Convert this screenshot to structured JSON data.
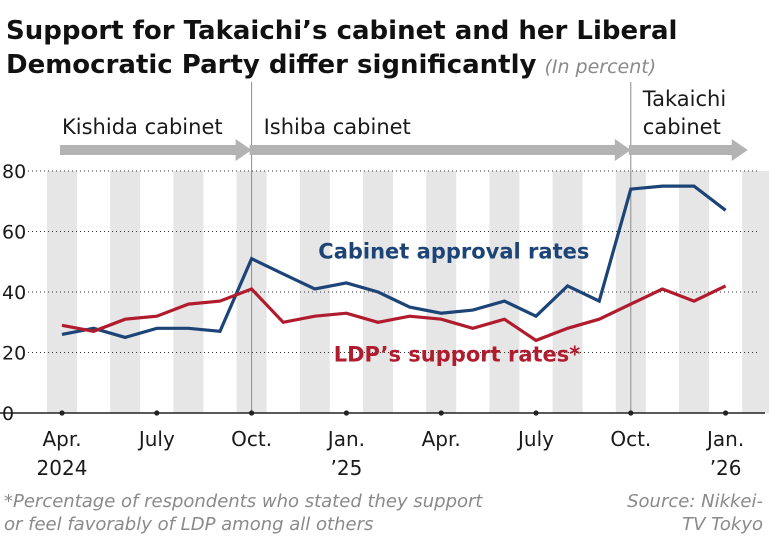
{
  "title_line1": "Support for Takaichi’s cabinet and her Liberal",
  "title_line2": "Democratic Party differ significantly",
  "title_unit": "(In percent)",
  "footnote_line1": "*Percentage of respondents who stated they support",
  "footnote_line2": "or feel favorably of LDP among all others",
  "source_line1": "Source: Nikkei-",
  "source_line2": "TV Tokyo",
  "colors": {
    "cabinet": "#1d4477",
    "ldp": "#b01c2e",
    "band": "#e6e6e6",
    "arrow": "#b3b3b3"
  },
  "chart_data": {
    "type": "line",
    "x_range": [
      0,
      22
    ],
    "ylim": [
      0,
      80
    ],
    "yticks": [
      0,
      20,
      40,
      60,
      80
    ],
    "x_ticks": [
      {
        "pos": 0,
        "line1": "Apr.",
        "line2": "2024"
      },
      {
        "pos": 3,
        "line1": "July",
        "line2": ""
      },
      {
        "pos": 6,
        "line1": "Oct.",
        "line2": ""
      },
      {
        "pos": 9,
        "line1": "Jan.",
        "line2": "’25"
      },
      {
        "pos": 12,
        "line1": "Apr.",
        "line2": ""
      },
      {
        "pos": 15,
        "line1": "July",
        "line2": ""
      },
      {
        "pos": 18,
        "line1": "Oct.",
        "line2": ""
      },
      {
        "pos": 21,
        "line1": "Jan.",
        "line2": "’26"
      }
    ],
    "cabinets": [
      {
        "label_line1": "Kishida cabinet",
        "label_line2": "",
        "start": 0,
        "end": 6
      },
      {
        "label_line1": "Ishiba cabinet",
        "label_line2": "",
        "start": 6,
        "end": 18
      },
      {
        "label_line1": "Takaichi",
        "label_line2": "cabinet",
        "start": 18,
        "end": 21.7
      }
    ],
    "series": [
      {
        "key": "cabinet",
        "name": "Cabinet approval rates",
        "label_pos": [
          12.4,
          51
        ],
        "points": [
          [
            0,
            26
          ],
          [
            1,
            28
          ],
          [
            2,
            25
          ],
          [
            3,
            28
          ],
          [
            4,
            28
          ],
          [
            5,
            27
          ],
          [
            6,
            51
          ],
          [
            7,
            46
          ],
          [
            8,
            41
          ],
          [
            9,
            43
          ],
          [
            10,
            40
          ],
          [
            11,
            35
          ],
          [
            12,
            33
          ],
          [
            13,
            34
          ],
          [
            14,
            37
          ],
          [
            15,
            32
          ],
          [
            16,
            42
          ],
          [
            17,
            37
          ],
          [
            18,
            74
          ],
          [
            19,
            75
          ],
          [
            20,
            75
          ],
          [
            21,
            67
          ]
        ]
      },
      {
        "key": "ldp",
        "name": "LDP’s support rates*",
        "label_pos": [
          12.5,
          17
        ],
        "points": [
          [
            0,
            29
          ],
          [
            1,
            27
          ],
          [
            2,
            31
          ],
          [
            3,
            32
          ],
          [
            4,
            36
          ],
          [
            5,
            37
          ],
          [
            6,
            41
          ],
          [
            7,
            30
          ],
          [
            8,
            32
          ],
          [
            9,
            33
          ],
          [
            10,
            30
          ],
          [
            11,
            32
          ],
          [
            12,
            31
          ],
          [
            13,
            28
          ],
          [
            14,
            31
          ],
          [
            15,
            24
          ],
          [
            16,
            28
          ],
          [
            17,
            31
          ],
          [
            18,
            36
          ],
          [
            19,
            41
          ],
          [
            20,
            37
          ],
          [
            21,
            42
          ]
        ]
      }
    ]
  }
}
